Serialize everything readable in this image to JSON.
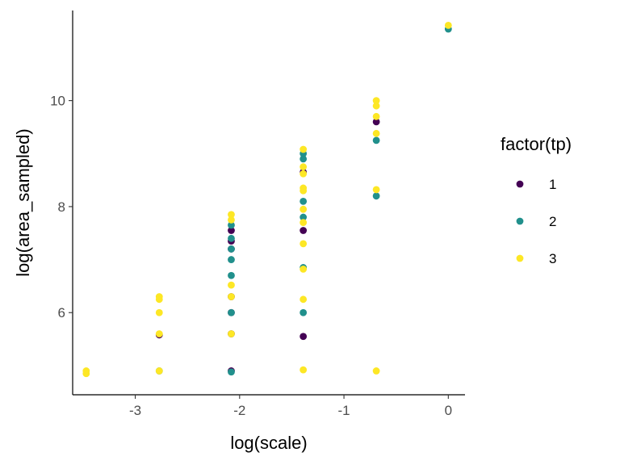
{
  "chart_data": {
    "type": "scatter",
    "title": "",
    "xlabel": "log(scale)",
    "ylabel": "log(area_sampled)",
    "xlim": [
      -3.6,
      0.16
    ],
    "ylim": [
      4.45,
      11.7
    ],
    "xticks": [
      -3,
      -2,
      -1,
      0
    ],
    "xtick_labels": [
      "-3",
      "-2",
      "-1",
      "0"
    ],
    "yticks": [
      6,
      8,
      10
    ],
    "ytick_labels": [
      "6",
      "8",
      "10"
    ],
    "grid": false,
    "legend": {
      "title": "factor(tp)",
      "position": "right"
    },
    "series": [
      {
        "name": "1",
        "color": "#440154",
        "points": [
          [
            -2.77,
            5.58
          ],
          [
            -2.08,
            7.55
          ],
          [
            -2.08,
            7.35
          ],
          [
            -2.08,
            7.2
          ],
          [
            -2.08,
            6.3
          ],
          [
            -2.08,
            6.0
          ],
          [
            -2.08,
            5.6
          ],
          [
            -2.08,
            4.9
          ],
          [
            -1.39,
            8.65
          ],
          [
            -1.39,
            7.55
          ],
          [
            -1.39,
            5.55
          ],
          [
            -0.69,
            9.6
          ]
        ]
      },
      {
        "name": "2",
        "color": "#21908C",
        "points": [
          [
            -2.77,
            4.9
          ],
          [
            -2.08,
            7.65
          ],
          [
            -2.08,
            7.4
          ],
          [
            -2.08,
            7.2
          ],
          [
            -2.08,
            7.0
          ],
          [
            -2.08,
            6.7
          ],
          [
            -2.08,
            6.0
          ],
          [
            -2.08,
            4.88
          ],
          [
            -1.39,
            9.0
          ],
          [
            -1.39,
            8.9
          ],
          [
            -1.39,
            8.1
          ],
          [
            -1.39,
            7.8
          ],
          [
            -1.39,
            6.85
          ],
          [
            -1.39,
            6.0
          ],
          [
            -0.69,
            9.25
          ],
          [
            -0.69,
            8.2
          ],
          [
            0.0,
            11.35
          ]
        ]
      },
      {
        "name": "3",
        "color": "#FDE725",
        "points": [
          [
            -3.47,
            4.9
          ],
          [
            -3.47,
            4.85
          ],
          [
            -2.77,
            6.3
          ],
          [
            -2.77,
            6.25
          ],
          [
            -2.77,
            6.0
          ],
          [
            -2.77,
            5.6
          ],
          [
            -2.77,
            4.9
          ],
          [
            -2.08,
            7.85
          ],
          [
            -2.08,
            7.75
          ],
          [
            -2.08,
            6.52
          ],
          [
            -2.08,
            6.3
          ],
          [
            -2.08,
            5.6
          ],
          [
            -1.39,
            9.08
          ],
          [
            -1.39,
            8.75
          ],
          [
            -1.39,
            8.62
          ],
          [
            -1.39,
            8.35
          ],
          [
            -1.39,
            8.3
          ],
          [
            -1.39,
            7.95
          ],
          [
            -1.39,
            7.7
          ],
          [
            -1.39,
            7.3
          ],
          [
            -1.39,
            6.82
          ],
          [
            -1.39,
            6.25
          ],
          [
            -1.39,
            4.92
          ],
          [
            -0.69,
            10.0
          ],
          [
            -0.69,
            9.9
          ],
          [
            -0.69,
            9.7
          ],
          [
            -0.69,
            9.38
          ],
          [
            -0.69,
            8.32
          ],
          [
            -0.69,
            4.9
          ],
          [
            0.0,
            11.42
          ]
        ]
      }
    ]
  }
}
